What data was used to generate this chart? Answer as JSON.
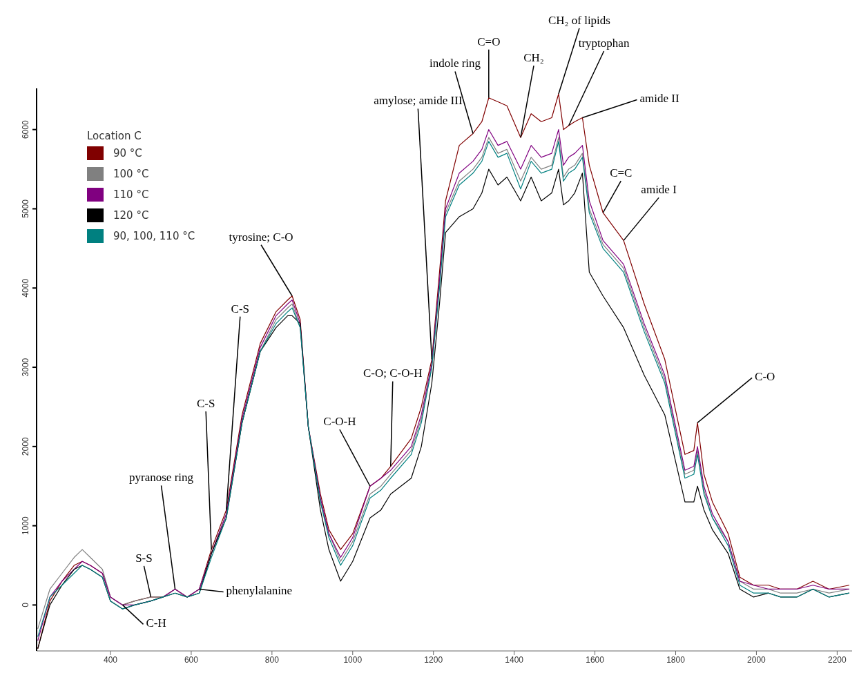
{
  "chart_data": {
    "type": "line",
    "legend_title": "Location C",
    "legend": "top left",
    "marker": "none",
    "x": [
      220,
      250,
      280,
      310,
      330,
      350,
      380,
      400,
      430,
      460,
      500,
      530,
      560,
      590,
      620,
      650,
      687,
      726,
      771,
      810,
      839,
      850,
      870,
      890,
      920,
      941,
      970,
      1000,
      1043,
      1070,
      1094,
      1145,
      1170,
      1196,
      1215,
      1230,
      1264,
      1298,
      1320,
      1337,
      1360,
      1382,
      1416,
      1442,
      1467,
      1493,
      1510,
      1522,
      1535,
      1550,
      1569,
      1586,
      1620,
      1671,
      1722,
      1773,
      1823,
      1845,
      1854,
      1870,
      1891,
      1930,
      1959,
      1993,
      2030,
      2060,
      2100,
      2140,
      2180,
      2230
    ],
    "series": [
      {
        "name": "90 °C",
        "color": "#800000",
        "values": [
          -550,
          50,
          300,
          500,
          550,
          500,
          400,
          100,
          0,
          50,
          100,
          100,
          200,
          100,
          200,
          700,
          1200,
          2400,
          3300,
          3700,
          3850,
          3900,
          3600,
          2250,
          1400,
          950,
          700,
          900,
          1500,
          1600,
          1750,
          2100,
          2500,
          3100,
          4200,
          5100,
          5800,
          5950,
          6100,
          6400,
          6350,
          6300,
          5900,
          6200,
          6100,
          6150,
          6450,
          6000,
          6050,
          6100,
          6150,
          5550,
          4950,
          4600,
          3800,
          3100,
          1900,
          1950,
          2300,
          1650,
          1300,
          900,
          350,
          250,
          250,
          200,
          200,
          300,
          200,
          250
        ]
      },
      {
        "name": "100 °C",
        "color": "#808080",
        "values": [
          -300,
          200,
          400,
          600,
          700,
          600,
          450,
          100,
          0,
          50,
          100,
          100,
          200,
          100,
          200,
          650,
          1150,
          2300,
          3200,
          3600,
          3750,
          3800,
          3500,
          2250,
          1300,
          900,
          550,
          800,
          1400,
          1500,
          1650,
          1950,
          2350,
          3000,
          4050,
          4950,
          5350,
          5500,
          5650,
          5900,
          5700,
          5750,
          5350,
          5650,
          5500,
          5550,
          5900,
          5400,
          5500,
          5550,
          5700,
          5000,
          4550,
          4250,
          3500,
          2850,
          1650,
          1700,
          1950,
          1450,
          1100,
          800,
          300,
          200,
          200,
          150,
          150,
          200,
          150,
          200
        ]
      },
      {
        "name": "110 °C",
        "color": "#800080",
        "values": [
          -450,
          100,
          300,
          450,
          550,
          500,
          400,
          100,
          0,
          0,
          50,
          100,
          200,
          100,
          200,
          650,
          1150,
          2350,
          3250,
          3650,
          3800,
          3850,
          3550,
          2250,
          1350,
          900,
          600,
          850,
          1500,
          1600,
          1700,
          2000,
          2400,
          3050,
          4100,
          5000,
          5450,
          5600,
          5750,
          6000,
          5800,
          5850,
          5500,
          5800,
          5650,
          5700,
          6000,
          5550,
          5650,
          5700,
          5800,
          5100,
          4600,
          4300,
          3550,
          2900,
          1700,
          1750,
          2000,
          1500,
          1150,
          800,
          300,
          250,
          200,
          200,
          200,
          250,
          200,
          200
        ]
      },
      {
        "name": "120 °C",
        "color": "#000000",
        "values": [
          -550,
          0,
          250,
          450,
          500,
          450,
          350,
          50,
          -50,
          0,
          50,
          100,
          150,
          100,
          150,
          650,
          1100,
          2300,
          3200,
          3500,
          3650,
          3650,
          3550,
          2250,
          1200,
          700,
          300,
          550,
          1100,
          1200,
          1400,
          1600,
          2000,
          2800,
          3800,
          4700,
          4900,
          5000,
          5200,
          5500,
          5300,
          5400,
          5100,
          5400,
          5100,
          5200,
          5500,
          5050,
          5100,
          5200,
          5450,
          4200,
          3900,
          3500,
          2900,
          2400,
          1300,
          1300,
          1500,
          1200,
          950,
          650,
          200,
          100,
          150,
          100,
          100,
          200,
          100,
          150
        ]
      },
      {
        "name": "90, 100, 110 °C",
        "color": "#008080",
        "values": [
          -400,
          100,
          250,
          400,
          500,
          450,
          350,
          50,
          -50,
          0,
          50,
          100,
          150,
          100,
          150,
          600,
          1100,
          2300,
          3200,
          3550,
          3700,
          3750,
          3500,
          2250,
          1300,
          850,
          500,
          750,
          1350,
          1450,
          1600,
          1900,
          2300,
          3000,
          4000,
          4900,
          5300,
          5450,
          5600,
          5850,
          5650,
          5700,
          5250,
          5600,
          5450,
          5500,
          5850,
          5350,
          5450,
          5500,
          5650,
          4950,
          4500,
          4200,
          3450,
          2800,
          1600,
          1650,
          1900,
          1400,
          1100,
          750,
          250,
          150,
          150,
          100,
          100,
          200,
          100,
          150
        ]
      }
    ],
    "xlim": [
      217,
      2237
    ],
    "xticks": [
      400,
      600,
      800,
      1000,
      1200,
      1400,
      1600,
      1800,
      2000,
      2200
    ],
    "ylim": [
      -580,
      6520
    ],
    "yticks": [
      0,
      1000,
      2000,
      3000,
      4000,
      5000,
      6000
    ],
    "annotations": [
      {
        "text": "C-H",
        "x": 430,
        "y": 0
      },
      {
        "text": "S-S",
        "x": 500,
        "y": 100
      },
      {
        "text": "pyranose ring",
        "x": 560,
        "y": 200
      },
      {
        "text": "phenylalanine",
        "x": 620,
        "y": 200
      },
      {
        "text": "C-S",
        "x": 650,
        "y": 700
      },
      {
        "text": "C-S",
        "x": 687,
        "y": 1200
      },
      {
        "text": "tyrosine; C-O",
        "x": 850,
        "y": 3900
      },
      {
        "text": "C-O-H",
        "x": 1043,
        "y": 1500
      },
      {
        "text": "C-O; C-O-H",
        "x": 1094,
        "y": 1750
      },
      {
        "text": "amylose; amide III",
        "x": 1196,
        "y": 3100
      },
      {
        "text": "indole ring",
        "x": 1298,
        "y": 5950
      },
      {
        "text": "C=O",
        "x": 1337,
        "y": 6400
      },
      {
        "text": "CH₂",
        "x": 1416,
        "y": 5900
      },
      {
        "text": "CH₂ of lipids",
        "x": 1510,
        "y": 6450
      },
      {
        "text": "tryptophan",
        "x": 1535,
        "y": 6050
      },
      {
        "text": "amide II",
        "x": 1569,
        "y": 6150
      },
      {
        "text": "C=C",
        "x": 1620,
        "y": 4950
      },
      {
        "text": "amide I",
        "x": 1671,
        "y": 4600
      },
      {
        "text": "C-O",
        "x": 1854,
        "y": 2300
      }
    ]
  }
}
